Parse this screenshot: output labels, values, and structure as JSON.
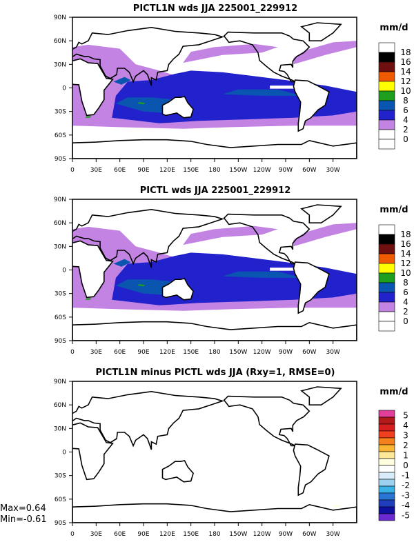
{
  "chart_data": [
    {
      "type": "heatmap",
      "title": "PICTL1N wds JJA 225001_229912",
      "lat_ticks": [
        "90N",
        "60N",
        "30N",
        "0",
        "30S",
        "60S",
        "90S"
      ],
      "lon_ticks": [
        "0",
        "30E",
        "60E",
        "90E",
        "120E",
        "150E",
        "180",
        "150W",
        "120W",
        "90W",
        "60W",
        "30W"
      ],
      "units": "mm/d",
      "colorbar": {
        "labels": [
          "18",
          "16",
          "14",
          "12",
          "10",
          "8",
          "6",
          "4",
          "2",
          "0"
        ],
        "colors": [
          "#ffffff",
          "#000000",
          "#6e1010",
          "#f05a00",
          "#ffff00",
          "#1e9e1e",
          "#0a55b0",
          "#2222cc",
          "#c283e3",
          "#ffffff",
          "#ffffff"
        ]
      }
    },
    {
      "type": "heatmap",
      "title": "PICTL wds JJA 225001_229912",
      "lat_ticks": [
        "90N",
        "60N",
        "30N",
        "0",
        "30S",
        "60S",
        "90S"
      ],
      "lon_ticks": [
        "0",
        "30E",
        "60E",
        "90E",
        "120E",
        "150E",
        "180",
        "150W",
        "120W",
        "90W",
        "60W",
        "30W"
      ],
      "units": "mm/d",
      "colorbar": {
        "labels": [
          "18",
          "16",
          "14",
          "12",
          "10",
          "8",
          "6",
          "4",
          "2",
          "0"
        ],
        "colors": [
          "#ffffff",
          "#000000",
          "#6e1010",
          "#f05a00",
          "#ffff00",
          "#1e9e1e",
          "#0a55b0",
          "#2222cc",
          "#c283e3",
          "#ffffff",
          "#ffffff"
        ]
      }
    },
    {
      "type": "heatmap",
      "title": "PICTL1N minus PICTL wds JJA (Rxy=1, RMSE=0)",
      "lat_ticks": [
        "90N",
        "60N",
        "30N",
        "0",
        "30S",
        "60S",
        "90S"
      ],
      "lon_ticks": [
        "0",
        "30E",
        "60E",
        "90E",
        "120E",
        "150E",
        "180",
        "150W",
        "120W",
        "90W",
        "60W",
        "30W"
      ],
      "units": "mm/d",
      "colorbar": {
        "labels": [
          "5",
          "4",
          "3",
          "2",
          "1",
          "0",
          "-1",
          "-2",
          "-3",
          "-4",
          "-5"
        ],
        "colors": [
          "#e0409a",
          "#b01a1a",
          "#d62020",
          "#f04020",
          "#f5801e",
          "#f8b432",
          "#fde89a",
          "#ffffe0",
          "#ffffff",
          "#d8ecfa",
          "#9cd2f0",
          "#3ab2e6",
          "#2a74d4",
          "#1e3ebc",
          "#1010a0",
          "#6a2ad2"
        ]
      },
      "max_label": "Max=0.64",
      "min_label": "Min=-0.61"
    }
  ]
}
